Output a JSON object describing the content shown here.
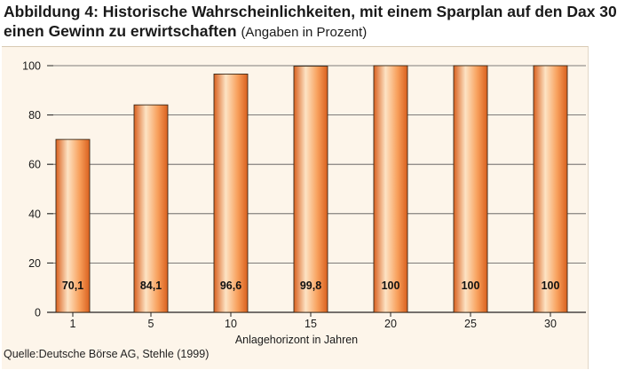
{
  "title": {
    "line1": "Abbildung 4: Historische Wahrscheinlichkeiten, mit einem Sparplan auf den Dax 30",
    "line2": "einen Gewinn zu erwirtschaften",
    "note": "(Angaben in Prozent)"
  },
  "source": "Quelle:Deutsche Börse AG, Stehle (1999)",
  "chart_data": {
    "type": "bar",
    "categories": [
      "1",
      "5",
      "10",
      "15",
      "20",
      "25",
      "30"
    ],
    "values": [
      70.1,
      84.1,
      96.6,
      99.8,
      100,
      100,
      100
    ],
    "value_labels": [
      "70,1",
      "84,1",
      "96,6",
      "99,8",
      "100",
      "100",
      "100"
    ],
    "title": "Abbildung 4: Historische Wahrscheinlichkeiten, mit einem Sparplan auf den Dax 30 einen Gewinn zu erwirtschaften",
    "subtitle": "(Angaben in Prozent)",
    "xlabel": "Anlagehorizont in Jahren",
    "ylabel": "",
    "ylim": [
      0,
      100
    ],
    "yticks": [
      0,
      20,
      40,
      60,
      80,
      100
    ],
    "grid": true,
    "legend": "none",
    "colors": {
      "bar_light": "#fde3c4",
      "bar_mid": "#f8a05c",
      "bar_dark": "#d9601e",
      "bar_outline": "#3a2a1a",
      "grid": "#555555",
      "panel": "#fdf5ea"
    }
  }
}
